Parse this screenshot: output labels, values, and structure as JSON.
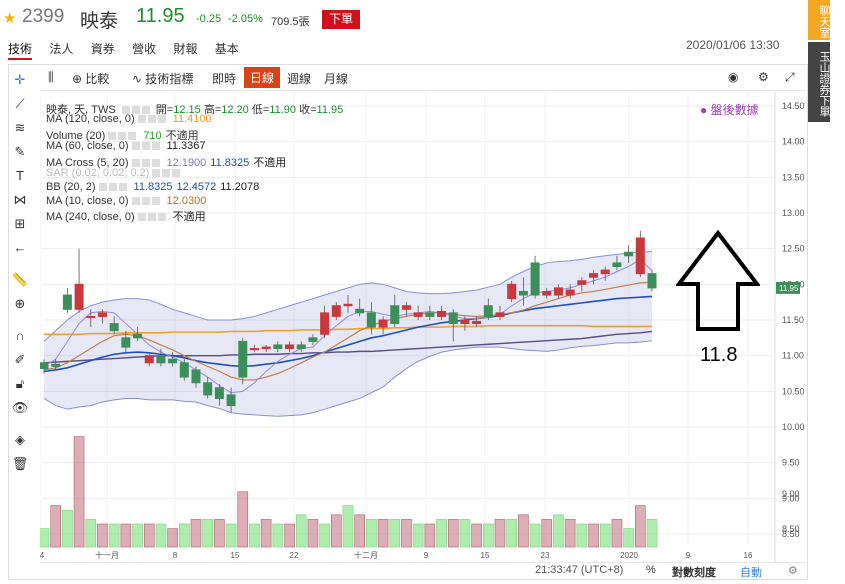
{
  "header": {
    "code": "2399",
    "name": "映泰",
    "price": "11.95",
    "change": "-0.25",
    "change_pct": "-2.05%",
    "volume": "709.5張",
    "order_label": "下單",
    "datetime": "2020/01/06 13:30",
    "tabs": [
      "技術",
      "法人",
      "資券",
      "營收",
      "財報",
      "基本"
    ],
    "price_color": "#1a8f2a",
    "order_color": "#d0111b"
  },
  "sidebar": {
    "chat_label": "聊天室",
    "bank_label": "玉山證券下單"
  },
  "toolbar": {
    "compare_label": "比較",
    "indicator_label": "技術指標",
    "realtime_label": "即時",
    "periods": [
      "日線",
      "週線",
      "月線"
    ],
    "active_period": "日線"
  },
  "legend": {
    "ohlc": {
      "title": "映泰, 天, TWS",
      "open_label": "開=",
      "open": "12.15",
      "high_label": "高=",
      "high": "12.20",
      "low_label": "低=",
      "low": "11.90",
      "close_label": "收=",
      "close": "11.95"
    },
    "rows": [
      {
        "name": "MA (120, close, 0)",
        "value": "11.4100",
        "color": "#e89a2c"
      },
      {
        "name": "Volume (20)",
        "value": "710",
        "value2": "不適用",
        "color": "#2aa02a"
      },
      {
        "name": "MA (60, close, 0)",
        "value": "11.3367",
        "color": "#222"
      },
      {
        "name": "MA Cross (5, 20)",
        "value": "12.1900",
        "value2": "11.8325",
        "value3": "不適用",
        "color": "#7a7ad0"
      },
      {
        "name": "SAR (0.02, 0.02, 0.2)",
        "value": "",
        "color": "#bbb"
      },
      {
        "name": "BB (20, 2)",
        "value": "11.8325",
        "value2": "12.4572",
        "value3": "11.2078",
        "color": "#1f4fa8"
      },
      {
        "name": "MA (10, close, 0)",
        "value": "12.0300",
        "color": "#c76a20"
      },
      {
        "name": "MA (240, close, 0)",
        "value": "不適用",
        "color": "#222"
      }
    ],
    "after_hours": "盤後數據"
  },
  "annotation": {
    "text": "11.8"
  },
  "status": {
    "time": "21:33:47 (UTC+8)",
    "percent": "%",
    "log_label": "對數刻度",
    "auto_label": "自動"
  },
  "chart_data": {
    "type": "candlestick",
    "price_axis": {
      "min": 8.5,
      "max": 14.5,
      "ticks": [
        "14.50",
        "14.00",
        "13.50",
        "13.00",
        "12.50",
        "12.00",
        "11.50",
        "11.00",
        "10.50",
        "10.00",
        "9.50",
        "9.00",
        "8.50"
      ]
    },
    "last_price_label": "11.95",
    "x_labels": [
      "4",
      "十一月",
      "8",
      "15",
      "22",
      "十二月",
      "9",
      "15",
      "23",
      "2020",
      "9",
      "16"
    ],
    "candles": [
      [
        10.9,
        10.95,
        10.75,
        10.82
      ],
      [
        10.88,
        10.95,
        10.8,
        10.85
      ],
      [
        11.85,
        11.95,
        11.6,
        11.65
      ],
      [
        11.65,
        12.5,
        11.6,
        12.0
      ],
      [
        11.55,
        11.65,
        11.4,
        11.55
      ],
      [
        11.55,
        11.65,
        11.45,
        11.6
      ],
      [
        11.45,
        11.55,
        11.3,
        11.35
      ],
      [
        11.25,
        11.35,
        11.05,
        11.12
      ],
      [
        11.3,
        11.4,
        11.2,
        11.25
      ],
      [
        10.9,
        11.05,
        10.85,
        11.0
      ],
      [
        11.0,
        11.1,
        10.85,
        10.9
      ],
      [
        10.95,
        11.05,
        10.85,
        10.9
      ],
      [
        10.9,
        10.95,
        10.65,
        10.7
      ],
      [
        10.8,
        10.85,
        10.55,
        10.62
      ],
      [
        10.62,
        10.7,
        10.4,
        10.45
      ],
      [
        10.55,
        10.6,
        10.3,
        10.4
      ],
      [
        10.45,
        10.55,
        10.2,
        10.3
      ],
      [
        11.2,
        11.25,
        10.6,
        10.7
      ],
      [
        11.1,
        11.15,
        11.05,
        11.1
      ],
      [
        11.1,
        11.15,
        11.05,
        11.12
      ],
      [
        11.15,
        11.2,
        11.05,
        11.1
      ],
      [
        11.1,
        11.2,
        11.05,
        11.15
      ],
      [
        11.15,
        11.2,
        11.05,
        11.1
      ],
      [
        11.25,
        11.3,
        11.15,
        11.2
      ],
      [
        11.3,
        11.7,
        11.25,
        11.6
      ],
      [
        11.55,
        11.75,
        11.5,
        11.7
      ],
      [
        11.7,
        11.85,
        11.6,
        11.72
      ],
      [
        11.65,
        11.8,
        11.55,
        11.6
      ],
      [
        11.6,
        11.75,
        11.3,
        11.4
      ],
      [
        11.4,
        11.55,
        11.3,
        11.5
      ],
      [
        11.7,
        11.85,
        11.4,
        11.45
      ],
      [
        11.65,
        11.75,
        11.55,
        11.7
      ],
      [
        11.55,
        11.7,
        11.5,
        11.6
      ],
      [
        11.6,
        11.7,
        11.5,
        11.55
      ],
      [
        11.55,
        11.7,
        11.5,
        11.62
      ],
      [
        11.6,
        11.65,
        11.2,
        11.45
      ],
      [
        11.45,
        11.55,
        11.35,
        11.5
      ],
      [
        11.45,
        11.55,
        11.4,
        11.48
      ],
      [
        11.7,
        11.8,
        11.5,
        11.55
      ],
      [
        11.55,
        11.7,
        11.5,
        11.6
      ],
      [
        11.8,
        12.05,
        11.75,
        12.0
      ],
      [
        11.9,
        12.1,
        11.7,
        11.85
      ],
      [
        12.3,
        12.4,
        11.8,
        11.85
      ],
      [
        11.85,
        11.95,
        11.8,
        11.9
      ],
      [
        11.85,
        12.0,
        11.8,
        11.95
      ],
      [
        11.85,
        12.0,
        11.8,
        11.92
      ],
      [
        12.0,
        12.1,
        11.9,
        12.05
      ],
      [
        12.1,
        12.2,
        12.0,
        12.15
      ],
      [
        12.15,
        12.25,
        12.05,
        12.2
      ],
      [
        12.3,
        12.4,
        12.2,
        12.25
      ],
      [
        12.45,
        12.55,
        12.3,
        12.4
      ],
      [
        12.15,
        12.75,
        12.1,
        12.65
      ],
      [
        12.15,
        12.2,
        11.9,
        11.95
      ]
    ],
    "volumes": [
      [
        4,
        0
      ],
      [
        9,
        1
      ],
      [
        8,
        0
      ],
      [
        24,
        1
      ],
      [
        6,
        0
      ],
      [
        5,
        1
      ],
      [
        5,
        0
      ],
      [
        5,
        1
      ],
      [
        5,
        0
      ],
      [
        5,
        1
      ],
      [
        5,
        0
      ],
      [
        4,
        1
      ],
      [
        5,
        0
      ],
      [
        6,
        1
      ],
      [
        6,
        0
      ],
      [
        6,
        1
      ],
      [
        5,
        0
      ],
      [
        12,
        1
      ],
      [
        5,
        0
      ],
      [
        6,
        1
      ],
      [
        5,
        0
      ],
      [
        5,
        1
      ],
      [
        7,
        0
      ],
      [
        6,
        1
      ],
      [
        5,
        0
      ],
      [
        7,
        1
      ],
      [
        9,
        0
      ],
      [
        7,
        1
      ],
      [
        6,
        0
      ],
      [
        6,
        1
      ],
      [
        6,
        0
      ],
      [
        6,
        1
      ],
      [
        5,
        0
      ],
      [
        5,
        1
      ],
      [
        6,
        0
      ],
      [
        6,
        1
      ],
      [
        6,
        0
      ],
      [
        5,
        1
      ],
      [
        5,
        0
      ],
      [
        6,
        1
      ],
      [
        6,
        0
      ],
      [
        7,
        1
      ],
      [
        5,
        0
      ],
      [
        6,
        1
      ],
      [
        7,
        0
      ],
      [
        6,
        1
      ],
      [
        5,
        0
      ],
      [
        5,
        1
      ],
      [
        5,
        0
      ],
      [
        6,
        1
      ],
      [
        4,
        0
      ],
      [
        9,
        1
      ],
      [
        6,
        0
      ]
    ],
    "bb_mid": [
      10.8,
      10.82,
      10.88,
      10.95,
      11.0,
      11.05,
      11.08,
      11.1,
      11.1,
      11.08,
      11.05,
      11.02,
      10.98,
      10.95,
      10.9,
      10.88,
      10.85,
      10.85,
      10.86,
      10.88,
      10.9,
      10.93,
      10.96,
      11.0,
      11.05,
      11.1,
      11.15,
      11.2,
      11.25,
      11.28,
      11.32,
      11.36,
      11.4,
      11.43,
      11.46,
      11.48,
      11.5,
      11.52,
      11.54,
      11.56,
      11.6,
      11.63,
      11.66,
      11.68,
      11.7,
      11.72,
      11.74,
      11.76,
      11.78,
      11.8,
      11.81,
      11.82,
      11.83
    ],
    "bb_up": [
      11.2,
      11.35,
      11.5,
      11.62,
      11.7,
      11.75,
      11.78,
      11.8,
      11.8,
      11.78,
      11.72,
      11.65,
      11.6,
      11.55,
      11.5,
      11.5,
      11.5,
      11.52,
      11.55,
      11.6,
      11.65,
      11.7,
      11.75,
      11.8,
      11.85,
      11.9,
      11.95,
      12.0,
      12.02,
      12.0,
      11.95,
      11.9,
      11.88,
      11.87,
      11.87,
      11.88,
      11.9,
      11.92,
      11.96,
      12.0,
      12.1,
      12.18,
      12.25,
      12.3,
      12.32,
      12.33,
      12.35,
      12.38,
      12.4,
      12.42,
      12.44,
      12.45,
      12.46
    ],
    "bb_lo": [
      10.4,
      10.3,
      10.25,
      10.28,
      10.3,
      10.35,
      10.38,
      10.4,
      10.4,
      10.38,
      10.38,
      10.38,
      10.36,
      10.35,
      10.3,
      10.26,
      10.2,
      10.18,
      10.17,
      10.16,
      10.15,
      10.16,
      10.17,
      10.2,
      10.25,
      10.3,
      10.35,
      10.4,
      10.48,
      10.56,
      10.7,
      10.82,
      10.92,
      10.99,
      11.05,
      11.08,
      11.1,
      11.12,
      11.12,
      11.12,
      11.1,
      11.08,
      11.07,
      11.06,
      11.08,
      11.11,
      11.13,
      11.14,
      11.16,
      11.18,
      11.18,
      11.19,
      11.21
    ],
    "ma120": [
      11.3,
      11.3,
      11.3,
      11.3,
      11.31,
      11.31,
      11.31,
      11.32,
      11.32,
      11.32,
      11.32,
      11.33,
      11.33,
      11.33,
      11.33,
      11.33,
      11.34,
      11.34,
      11.34,
      11.35,
      11.35,
      11.35,
      11.36,
      11.36,
      11.36,
      11.37,
      11.37,
      11.38,
      11.38,
      11.38,
      11.39,
      11.39,
      11.4,
      11.4,
      11.4,
      11.41,
      11.41,
      11.41,
      11.42,
      11.42,
      11.42,
      11.42,
      11.42,
      11.42,
      11.42,
      11.42,
      11.42,
      11.41,
      11.41,
      11.41,
      11.41,
      11.41,
      11.41
    ],
    "ma60": [
      10.9,
      10.91,
      10.92,
      10.93,
      10.94,
      10.95,
      10.96,
      10.97,
      10.98,
      10.99,
      11.0,
      11.0,
      11.0,
      11.0,
      11.0,
      11.0,
      11.01,
      11.01,
      11.02,
      11.02,
      11.02,
      11.03,
      11.03,
      11.04,
      11.04,
      11.05,
      11.05,
      11.06,
      11.06,
      11.07,
      11.08,
      11.09,
      11.1,
      11.11,
      11.12,
      11.13,
      11.14,
      11.15,
      11.16,
      11.17,
      11.18,
      11.19,
      11.2,
      11.21,
      11.22,
      11.23,
      11.24,
      11.26,
      11.28,
      11.3,
      11.31,
      11.32,
      11.34
    ],
    "ma_fast": [
      10.85,
      10.95,
      11.2,
      11.45,
      11.6,
      11.62,
      11.6,
      11.45,
      11.3,
      11.15,
      11.05,
      10.98,
      10.9,
      10.8,
      10.7,
      10.58,
      10.48,
      10.5,
      10.62,
      10.78,
      10.92,
      11.02,
      11.1,
      11.12,
      11.28,
      11.42,
      11.55,
      11.62,
      11.62,
      11.58,
      11.55,
      11.58,
      11.6,
      11.62,
      11.6,
      11.55,
      11.52,
      11.52,
      11.54,
      11.58,
      11.7,
      11.8,
      11.88,
      11.9,
      11.92,
      11.95,
      12.0,
      12.05,
      12.1,
      12.18,
      12.25,
      12.35,
      12.19
    ],
    "ma10": [
      10.8,
      10.83,
      10.9,
      11.0,
      11.1,
      11.2,
      11.28,
      11.3,
      11.28,
      11.22,
      11.15,
      11.08,
      11.0,
      10.92,
      10.85,
      10.78,
      10.7,
      10.66,
      10.66,
      10.7,
      10.75,
      10.82,
      10.9,
      10.98,
      11.05,
      11.15,
      11.25,
      11.35,
      11.42,
      11.48,
      11.52,
      11.55,
      11.58,
      11.6,
      11.6,
      11.58,
      11.56,
      11.55,
      11.56,
      11.58,
      11.6,
      11.64,
      11.7,
      11.75,
      11.8,
      11.85,
      11.88,
      11.9,
      11.93,
      11.96,
      11.99,
      12.02,
      12.03
    ],
    "ma20": [
      10.78,
      10.8,
      10.83,
      10.88,
      10.93,
      10.98,
      11.02,
      11.04,
      11.05,
      11.04,
      11.02,
      11.0,
      10.97,
      10.93,
      10.9,
      10.88,
      10.86,
      10.85,
      10.86,
      10.88,
      10.9,
      10.93,
      10.96,
      11.0,
      11.05,
      11.1,
      11.15,
      11.2,
      11.25,
      11.28,
      11.32,
      11.36,
      11.4,
      11.43,
      11.46,
      11.48,
      11.5,
      11.52,
      11.54,
      11.56,
      11.6,
      11.63,
      11.66,
      11.68,
      11.7,
      11.72,
      11.74,
      11.76,
      11.78,
      11.8,
      11.81,
      11.82,
      11.83
    ]
  }
}
